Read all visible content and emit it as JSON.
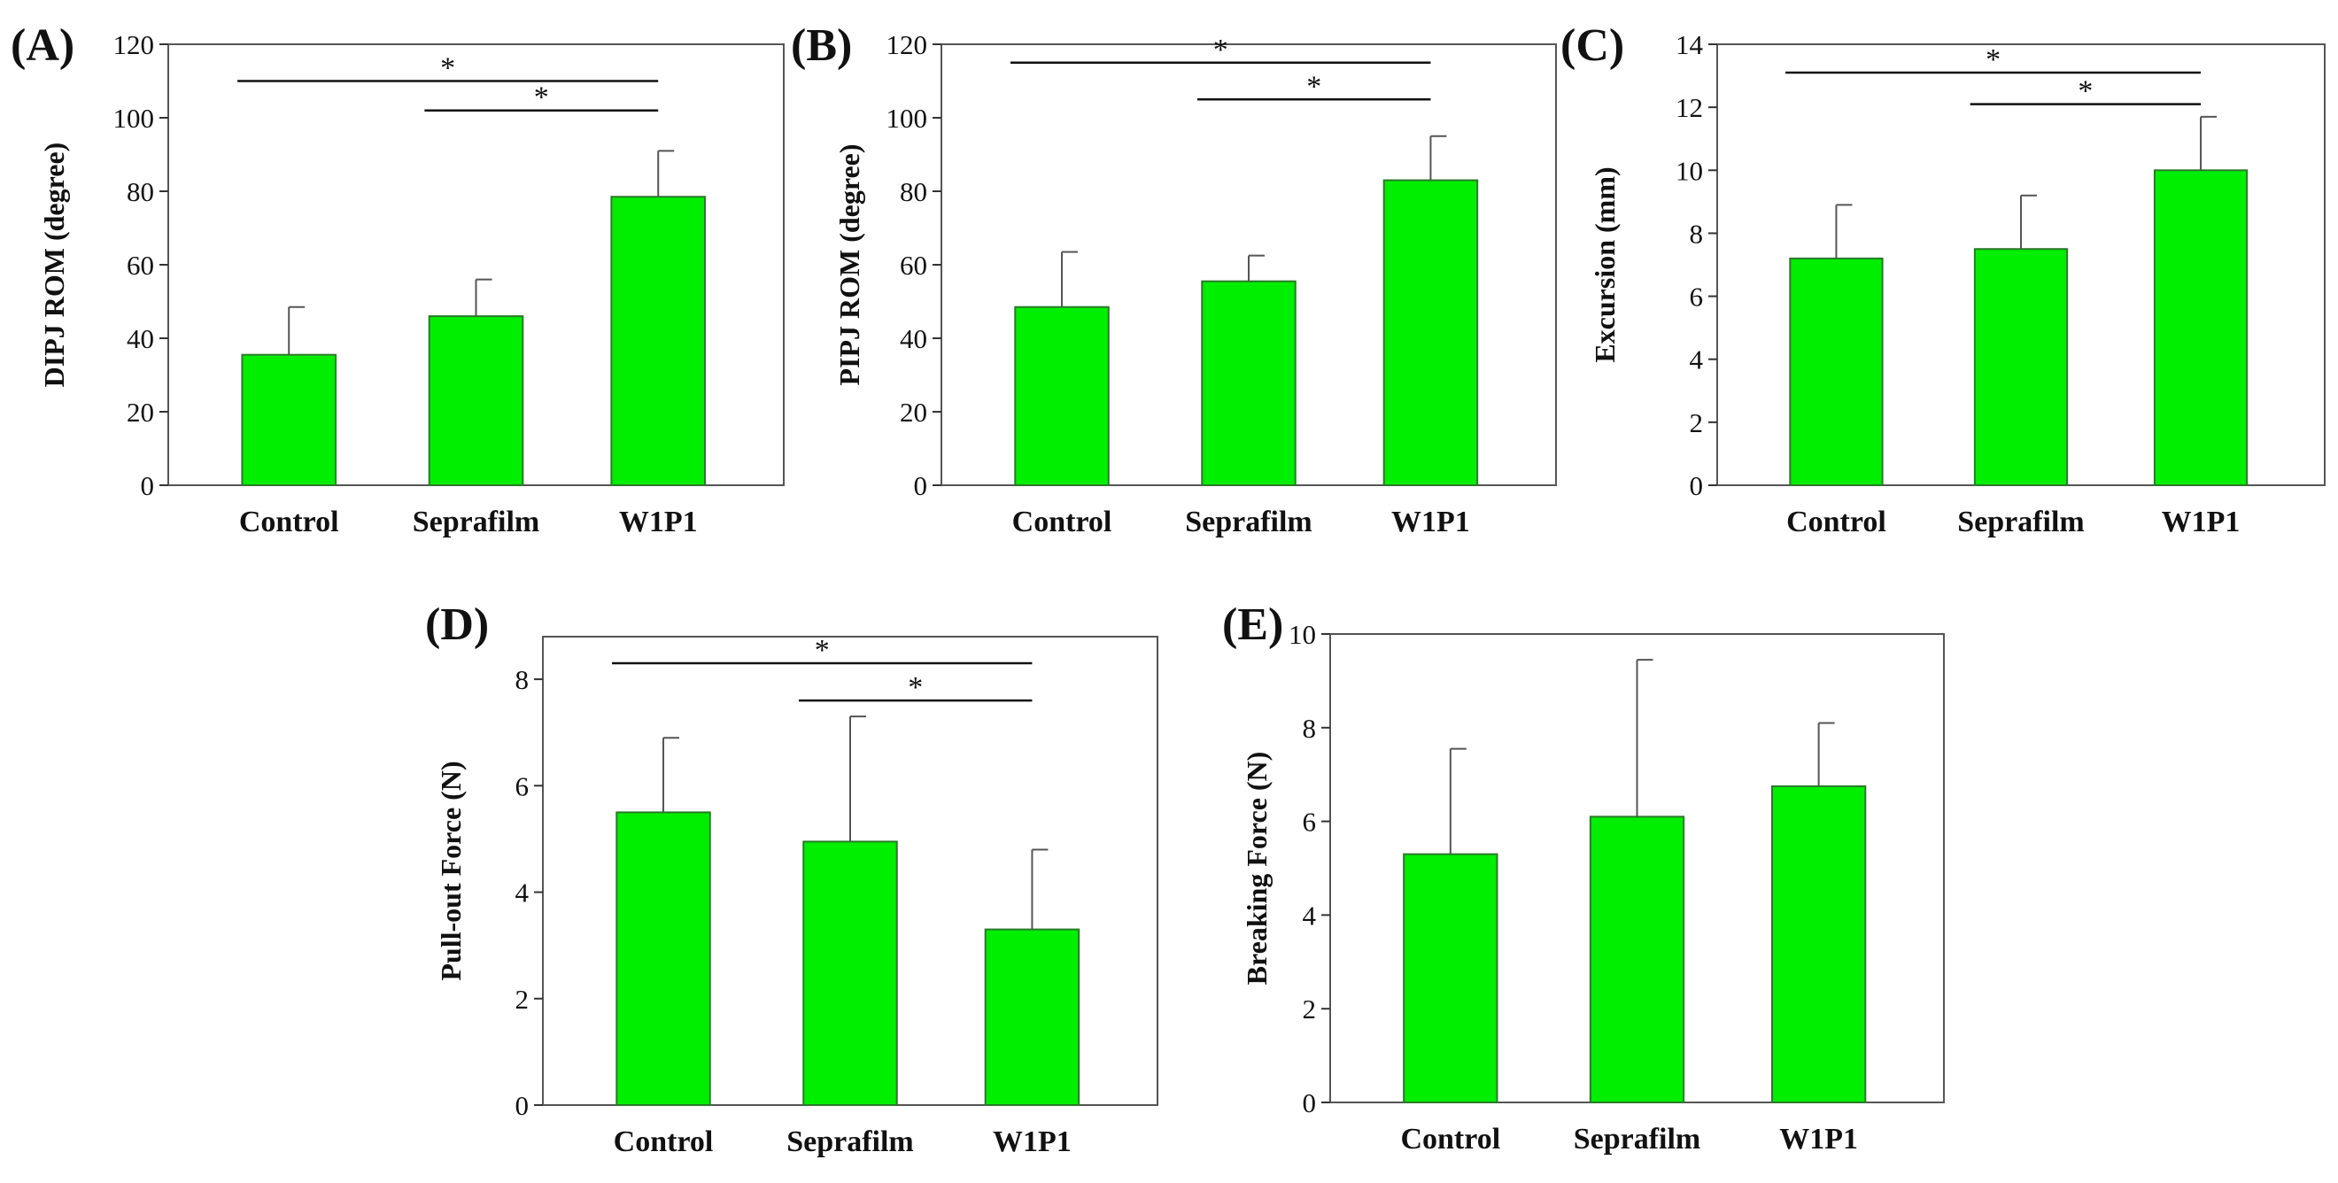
{
  "chart_data": [
    {
      "panel": "(A)",
      "type": "bar",
      "categories": [
        "Control",
        "Seprafilm",
        "W1P1"
      ],
      "values": [
        35.5,
        46,
        78.5
      ],
      "errors": [
        13,
        10,
        12.5
      ],
      "xlabel": "",
      "ylabel": "DIPJ ROM (degree)",
      "ylim": [
        0,
        120
      ],
      "yticks": [
        0,
        20,
        40,
        60,
        80,
        100,
        120
      ],
      "bar_color": "#00ee00",
      "significance": [
        {
          "from": 0,
          "to": 2,
          "label": "*",
          "y": 110
        },
        {
          "from": 1,
          "to": 2,
          "label": "*",
          "y": 102
        }
      ]
    },
    {
      "panel": "(B)",
      "type": "bar",
      "categories": [
        "Control",
        "Seprafilm",
        "W1P1"
      ],
      "values": [
        48.5,
        55.5,
        83
      ],
      "errors": [
        15,
        7,
        12
      ],
      "xlabel": "",
      "ylabel": "PIPJ ROM (degree)",
      "ylim": [
        0,
        120
      ],
      "yticks": [
        0,
        20,
        40,
        60,
        80,
        100,
        120
      ],
      "bar_color": "#00ee00",
      "significance": [
        {
          "from": 0,
          "to": 2,
          "label": "*",
          "y": 115
        },
        {
          "from": 1,
          "to": 2,
          "label": "*",
          "y": 105
        }
      ]
    },
    {
      "panel": "(C)",
      "type": "bar",
      "categories": [
        "Control",
        "Seprafilm",
        "W1P1"
      ],
      "values": [
        7.2,
        7.5,
        10
      ],
      "errors": [
        1.7,
        1.7,
        1.7
      ],
      "xlabel": "",
      "ylabel": "Excursion (mm)",
      "ylim": [
        0,
        14
      ],
      "yticks": [
        0,
        2,
        4,
        6,
        8,
        10,
        12,
        14
      ],
      "bar_color": "#00ee00",
      "significance": [
        {
          "from": 0,
          "to": 2,
          "label": "*",
          "y": 13.1
        },
        {
          "from": 1,
          "to": 2,
          "label": "*",
          "y": 12.1
        }
      ]
    },
    {
      "panel": "(D)",
      "type": "bar",
      "categories": [
        "Control",
        "Seprafilm",
        "W1P1"
      ],
      "values": [
        5.5,
        4.95,
        3.3
      ],
      "errors": [
        1.4,
        2.35,
        1.5
      ],
      "xlabel": "",
      "ylabel": "Pull-out Force (N)",
      "ylim": [
        0,
        8.8
      ],
      "yticks": [
        0,
        2,
        4,
        6,
        8
      ],
      "bar_color": "#00ee00",
      "significance": [
        {
          "from": 0,
          "to": 2,
          "label": "*",
          "y": 8.3
        },
        {
          "from": 1,
          "to": 2,
          "label": "*",
          "y": 7.6
        }
      ]
    },
    {
      "panel": "(E)",
      "type": "bar",
      "categories": [
        "Control",
        "Seprafilm",
        "W1P1"
      ],
      "values": [
        5.3,
        6.1,
        6.75
      ],
      "errors": [
        2.25,
        3.35,
        1.35
      ],
      "xlabel": "",
      "ylabel": "Breaking Force (N)",
      "ylim": [
        0,
        10
      ],
      "yticks": [
        0,
        2,
        4,
        6,
        8,
        10
      ],
      "bar_color": "#00ee00",
      "significance": []
    }
  ]
}
